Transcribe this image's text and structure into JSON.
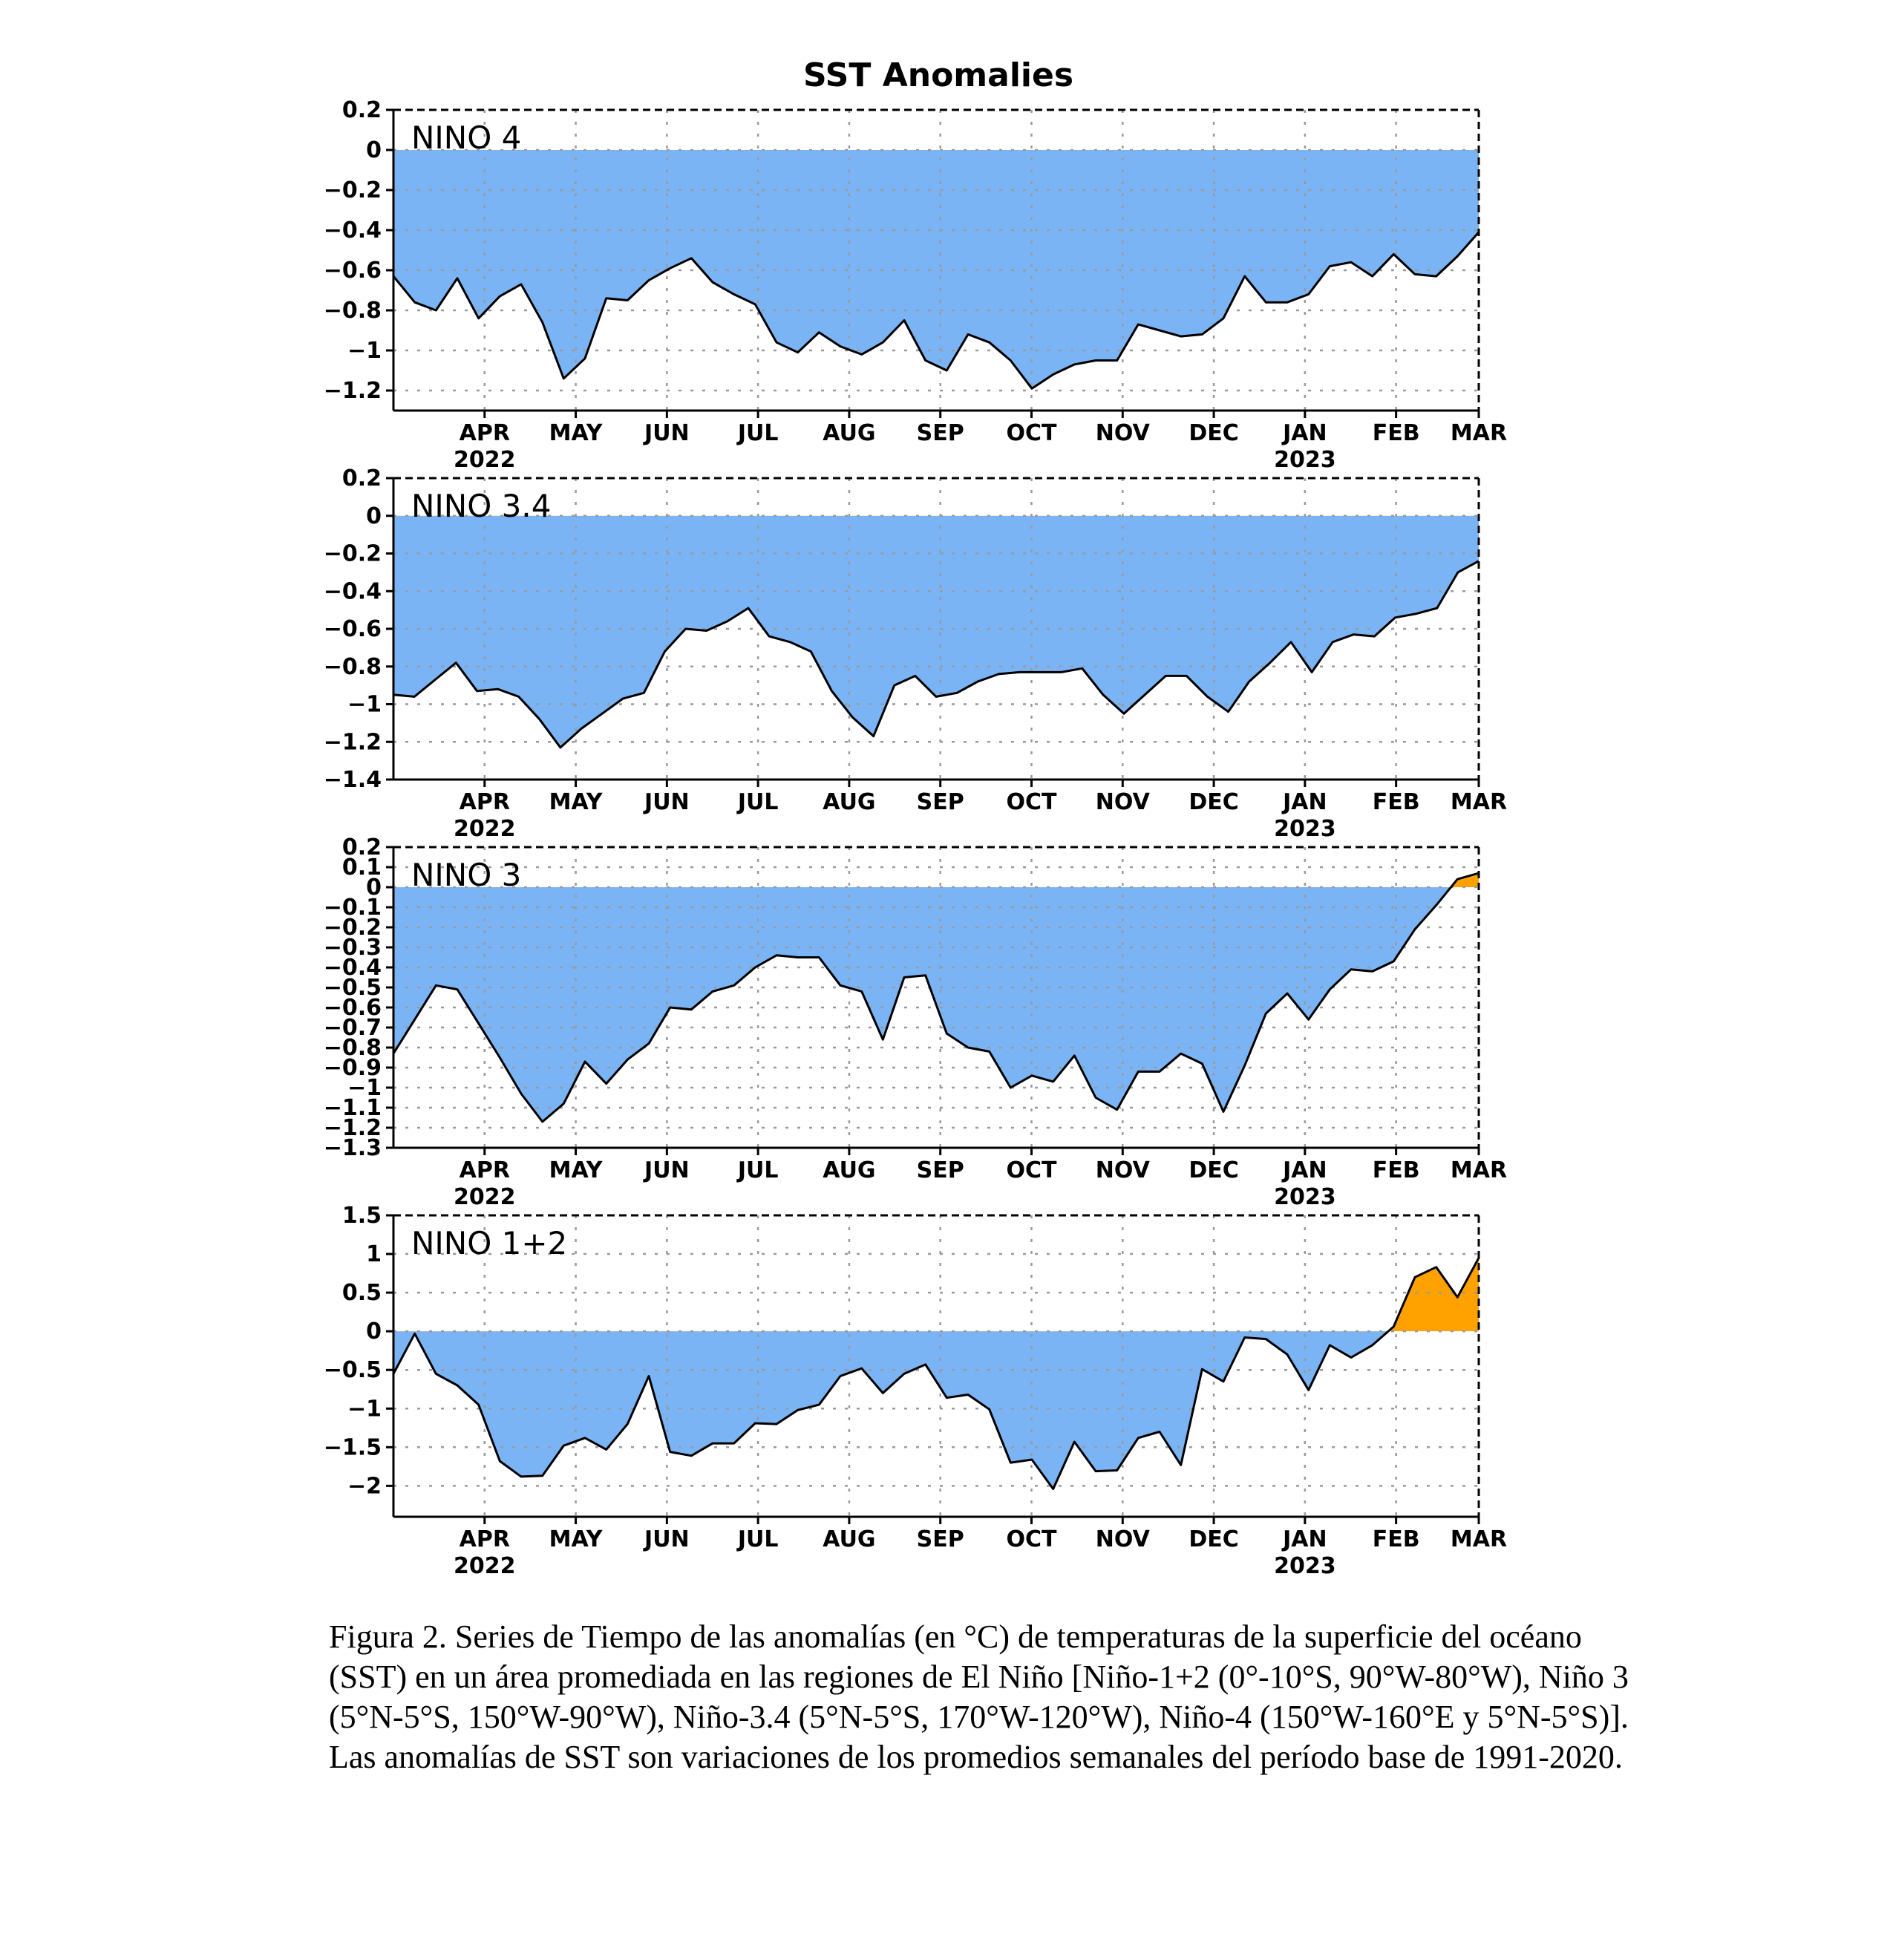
{
  "figure": {
    "title": "SST Anomalies",
    "caption": "Figura 2. Series de Tiempo de las anomalías (en °C) de temperaturas de la superficie del océano (SST) en un área promediada en las regiones de El Niño [Niño-1+2 (0°-10°S, 90°W-80°W), Niño 3 (5°N-5°S, 150°W-90°W), Niño-3.4 (5°N-5°S, 170°W-120°W), Niño-4 (150°W-160°E y 5°N-5°S)]. Las anomalías de SST son variaciones de los promedios semanales del período base de 1991-2020."
  },
  "colors": {
    "negative_fill": "#7ab4f5",
    "positive_fill": "#ffa200",
    "line": "#000000"
  },
  "x_axis": {
    "month_labels": [
      "APR",
      "MAY",
      "JUN",
      "JUL",
      "AUG",
      "SEP",
      "OCT",
      "NOV",
      "DEC",
      "JAN",
      "FEB",
      "MAR"
    ],
    "year_labels": [
      {
        "month": "APR",
        "year": "2022"
      },
      {
        "month": "JAN",
        "year": "2023"
      }
    ],
    "range_weeks": [
      0,
      50
    ]
  },
  "chart_data": [
    {
      "type": "area",
      "label": "NINO 4",
      "ylim": [
        -1.3,
        0.2
      ],
      "yticks": [
        0.2,
        0,
        -0.2,
        -0.4,
        -0.6,
        -0.8,
        -1,
        -1.2
      ],
      "ytick_labels": [
        "0.2",
        "0",
        "−0.2",
        "−0.4",
        "−0.6",
        "−0.8",
        "−1",
        "−1.2"
      ],
      "grid": true,
      "values": [
        -0.63,
        -0.76,
        -0.8,
        -0.64,
        -0.84,
        -0.73,
        -0.67,
        -0.86,
        -1.14,
        -1.04,
        -0.74,
        -0.75,
        -0.65,
        -0.59,
        -0.54,
        -0.66,
        -0.72,
        -0.77,
        -0.96,
        -1.01,
        -0.91,
        -0.98,
        -1.02,
        -0.96,
        -0.85,
        -1.05,
        -1.1,
        -0.92,
        -0.96,
        -1.05,
        -1.19,
        -1.12,
        -1.07,
        -1.05,
        -1.05,
        -0.87,
        -0.9,
        -0.93,
        -0.92,
        -0.84,
        -0.63,
        -0.76,
        -0.76,
        -0.72,
        -0.58,
        -0.56,
        -0.63,
        -0.52,
        -0.62,
        -0.63,
        -0.53,
        -0.41
      ]
    },
    {
      "type": "area",
      "label": "NINO 3.4",
      "ylim": [
        -1.4,
        0.2
      ],
      "yticks": [
        0.2,
        0,
        -0.2,
        -0.4,
        -0.6,
        -0.8,
        -1,
        -1.2,
        -1.4
      ],
      "ytick_labels": [
        "0.2",
        "0",
        "−0.2",
        "−0.4",
        "−0.6",
        "−0.8",
        "−1",
        "−1.2",
        "−1.4"
      ],
      "grid": true,
      "values": [
        -0.95,
        -0.96,
        -0.87,
        -0.78,
        -0.93,
        -0.92,
        -0.96,
        -1.08,
        -1.23,
        -1.13,
        -1.05,
        -0.97,
        -0.94,
        -0.72,
        -0.6,
        -0.61,
        -0.56,
        -0.49,
        -0.64,
        -0.67,
        -0.72,
        -0.93,
        -1.07,
        -1.17,
        -0.9,
        -0.85,
        -0.96,
        -0.94,
        -0.88,
        -0.84,
        -0.83,
        -0.83,
        -0.83,
        -0.81,
        -0.95,
        -1.05,
        -0.95,
        -0.85,
        -0.85,
        -0.96,
        -1.04,
        -0.88,
        -0.78,
        -0.67,
        -0.83,
        -0.67,
        -0.63,
        -0.64,
        -0.54,
        -0.52,
        -0.49,
        -0.3,
        -0.24
      ]
    },
    {
      "type": "area",
      "label": "NINO 3",
      "ylim": [
        -1.3,
        0.2
      ],
      "yticks": [
        0.2,
        0.1,
        0,
        -0.1,
        -0.2,
        -0.3,
        -0.4,
        -0.5,
        -0.6,
        -0.7,
        -0.8,
        -0.9,
        -1,
        -1.1,
        -1.2,
        -1.3
      ],
      "ytick_labels": [
        "0.2",
        "0.1",
        "0",
        "−0.1",
        "−0.2",
        "−0.3",
        "−0.4",
        "−0.5",
        "−0.6",
        "−0.7",
        "−0.8",
        "−0.9",
        "−1",
        "−1.1",
        "−1.2",
        "−1.3"
      ],
      "grid": true,
      "values": [
        -0.83,
        -0.66,
        -0.49,
        -0.51,
        -0.68,
        -0.85,
        -1.03,
        -1.17,
        -1.08,
        -0.87,
        -0.98,
        -0.86,
        -0.78,
        -0.6,
        -0.61,
        -0.52,
        -0.49,
        -0.4,
        -0.34,
        -0.35,
        -0.35,
        -0.49,
        -0.52,
        -0.76,
        -0.45,
        -0.44,
        -0.73,
        -0.8,
        -0.82,
        -1.0,
        -0.94,
        -0.97,
        -0.84,
        -1.05,
        -1.11,
        -0.92,
        -0.92,
        -0.83,
        -0.88,
        -1.12,
        -0.89,
        -0.63,
        -0.53,
        -0.66,
        -0.51,
        -0.41,
        -0.42,
        -0.37,
        -0.21,
        -0.09,
        0.04,
        0.07
      ]
    },
    {
      "type": "area",
      "label": "NINO 1+2",
      "ylim": [
        -2.4,
        1.5
      ],
      "yticks": [
        1.5,
        1,
        0.5,
        0,
        -0.5,
        -1,
        -1.5,
        -2
      ],
      "ytick_labels": [
        "1.5",
        "1",
        "0.5",
        "0",
        "−0.5",
        "−1",
        "−1.5",
        "−2"
      ],
      "grid": true,
      "values": [
        -0.55,
        -0.03,
        -0.55,
        -0.7,
        -0.95,
        -1.68,
        -1.88,
        -1.87,
        -1.48,
        -1.38,
        -1.53,
        -1.2,
        -0.58,
        -1.56,
        -1.61,
        -1.45,
        -1.45,
        -1.19,
        -1.2,
        -1.02,
        -0.95,
        -0.58,
        -0.48,
        -0.8,
        -0.55,
        -0.43,
        -0.86,
        -0.82,
        -1.01,
        -1.7,
        -1.66,
        -2.04,
        -1.43,
        -1.81,
        -1.8,
        -1.38,
        -1.3,
        -1.73,
        -0.49,
        -0.65,
        -0.08,
        -0.1,
        -0.3,
        -0.76,
        -0.18,
        -0.34,
        -0.18,
        0.06,
        0.7,
        0.83,
        0.44,
        0.95
      ]
    }
  ]
}
